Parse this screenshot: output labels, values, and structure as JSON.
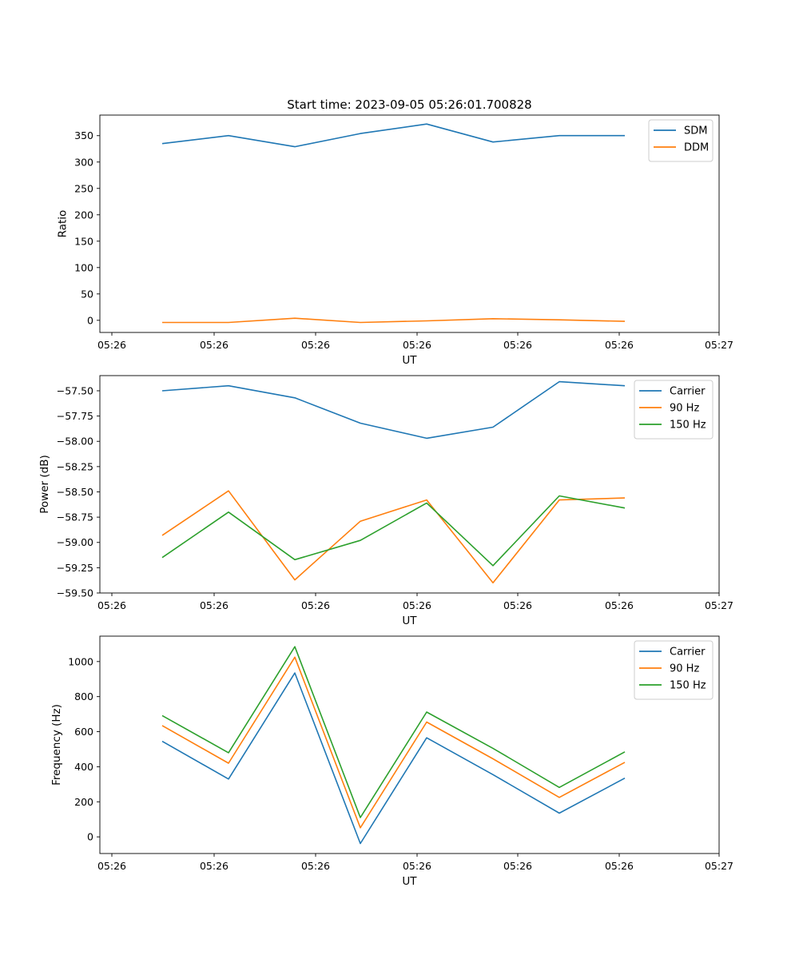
{
  "chart_data": [
    {
      "type": "line",
      "title": "Start time: 2023-09-05 05:26:01.700828",
      "xlabel": "UT",
      "ylabel": "Ratio",
      "x_ticks": [
        "05:26",
        "05:26",
        "05:26",
        "05:26",
        "05:26",
        "05:26",
        "05:27"
      ],
      "ylim": [
        -23,
        389
      ],
      "y_ticks": [
        0,
        50,
        100,
        150,
        200,
        250,
        300,
        350
      ],
      "y_tick_labels": [
        "0",
        "50",
        "100",
        "150",
        "200",
        "250",
        "300",
        "350"
      ],
      "legend_position": "top-right",
      "series": [
        {
          "name": "SDM",
          "color": "#1f77b4",
          "values": [
            335,
            350,
            329,
            354,
            372,
            338,
            350,
            350
          ]
        },
        {
          "name": "DDM",
          "color": "#ff7f0e",
          "values": [
            -4,
            -4,
            4,
            -4,
            -1,
            3,
            1,
            -2
          ]
        }
      ]
    },
    {
      "type": "line",
      "title": "",
      "xlabel": "UT",
      "ylabel": "Power (dB)",
      "x_ticks": [
        "05:26",
        "05:26",
        "05:26",
        "05:26",
        "05:26",
        "05:26",
        "05:27"
      ],
      "ylim": [
        -59.5,
        -57.35
      ],
      "y_ticks": [
        -59.5,
        -59.25,
        -59.0,
        -58.75,
        -58.5,
        -58.25,
        -58.0,
        -57.75,
        -57.5
      ],
      "y_tick_labels": [
        "−59.50",
        "−59.25",
        "−59.00",
        "−58.75",
        "−58.50",
        "−58.25",
        "−58.00",
        "−57.75",
        "−57.50"
      ],
      "legend_position": "top-right",
      "series": [
        {
          "name": "Carrier",
          "color": "#1f77b4",
          "values": [
            -57.5,
            -57.45,
            -57.57,
            -57.82,
            -57.97,
            -57.86,
            -57.41,
            -57.45
          ]
        },
        {
          "name": "90 Hz",
          "color": "#ff7f0e",
          "values": [
            -58.93,
            -58.49,
            -59.37,
            -58.79,
            -58.58,
            -59.4,
            -58.58,
            -58.56
          ]
        },
        {
          "name": "150 Hz",
          "color": "#2ca02c",
          "values": [
            -59.15,
            -58.7,
            -59.17,
            -58.98,
            -58.61,
            -59.23,
            -58.54,
            -58.66
          ]
        }
      ]
    },
    {
      "type": "line",
      "title": "",
      "xlabel": "UT",
      "ylabel": "Frequency (Hz)",
      "x_ticks": [
        "05:26",
        "05:26",
        "05:26",
        "05:26",
        "05:26",
        "05:26",
        "05:27"
      ],
      "ylim": [
        -95,
        1145
      ],
      "y_ticks": [
        0,
        200,
        400,
        600,
        800,
        1000
      ],
      "y_tick_labels": [
        "0",
        "200",
        "400",
        "600",
        "800",
        "1000"
      ],
      "legend_position": "top-right",
      "series": [
        {
          "name": "Carrier",
          "color": "#1f77b4",
          "values": [
            545,
            330,
            935,
            -38,
            565,
            355,
            135,
            335
          ]
        },
        {
          "name": "90 Hz",
          "color": "#ff7f0e",
          "values": [
            635,
            420,
            1025,
            52,
            655,
            445,
            225,
            425
          ]
        },
        {
          "name": "150 Hz",
          "color": "#2ca02c",
          "values": [
            692,
            480,
            1085,
            110,
            712,
            505,
            282,
            485
          ]
        }
      ]
    }
  ]
}
